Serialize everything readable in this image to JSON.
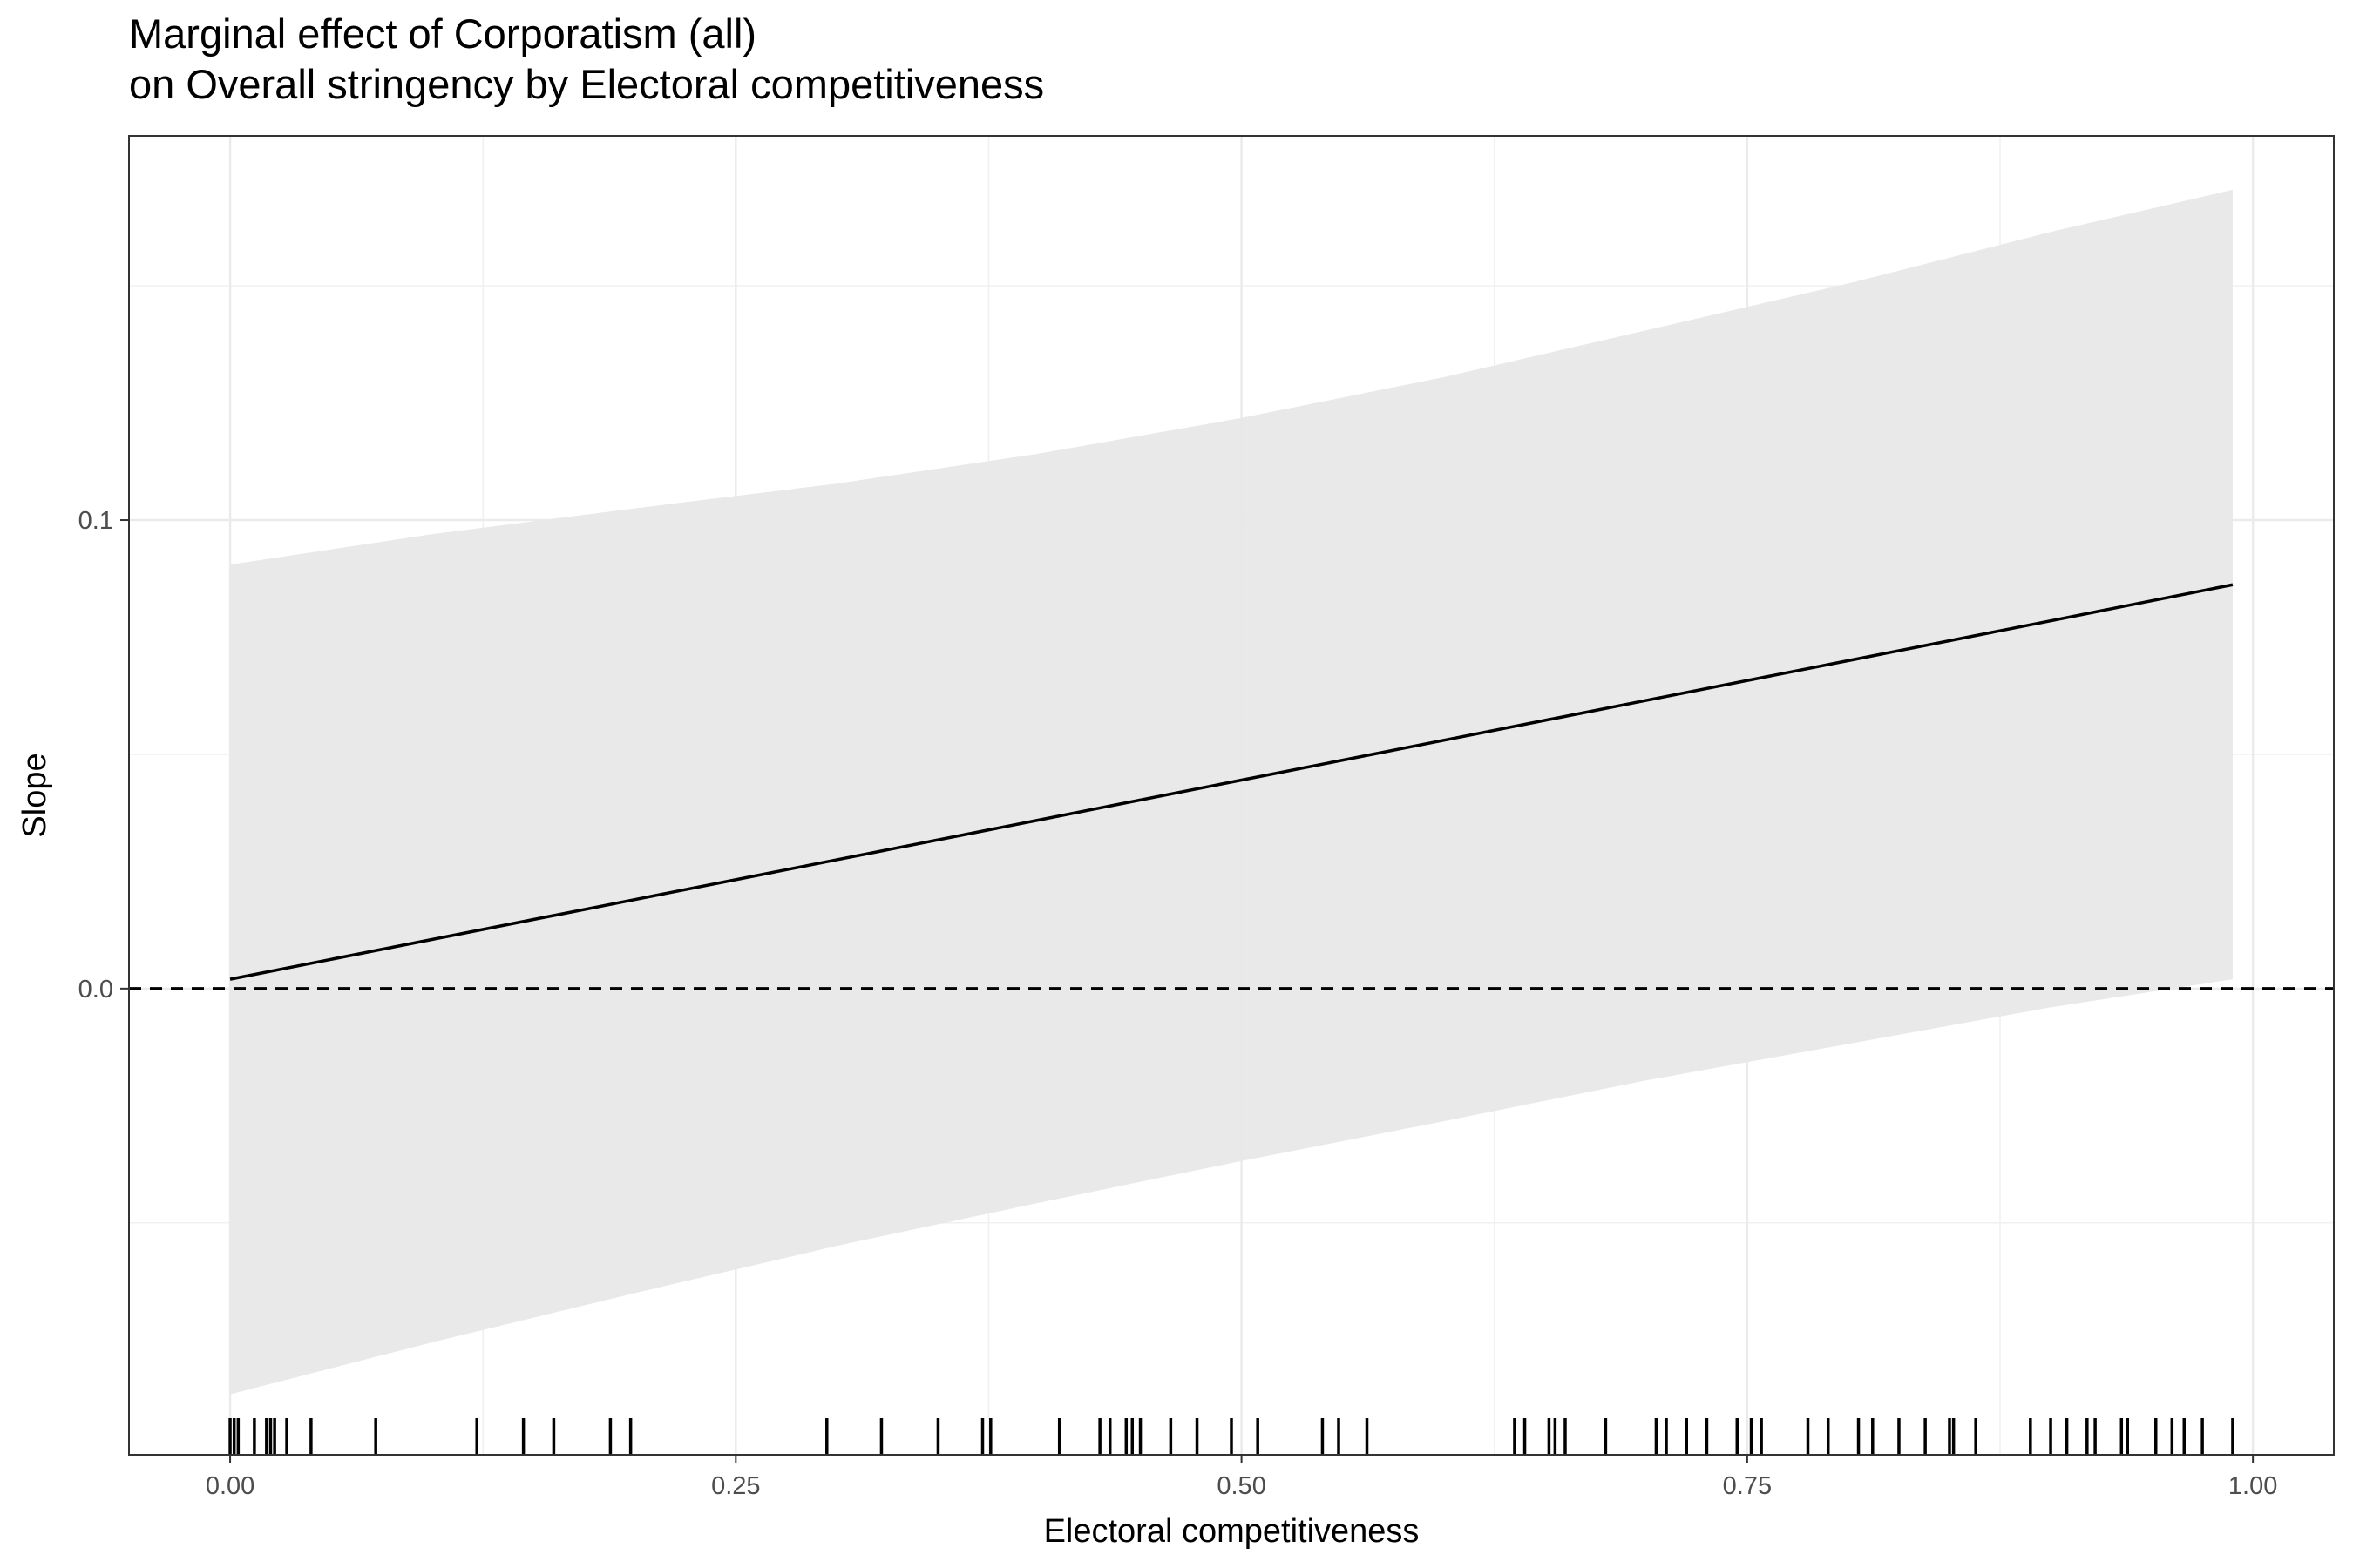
{
  "chart_data": {
    "type": "line",
    "title": "Marginal effect of Corporatism (all)",
    "subtitle": "on Overall stringency by Electoral competitiveness",
    "xlabel": "Electoral competitiveness",
    "ylabel": "Slope",
    "xlim": [
      -0.05,
      1.04
    ],
    "ylim": [
      -0.0995,
      0.182
    ],
    "x_ticks": [
      0,
      0.25,
      0.5,
      0.75,
      1
    ],
    "x_tick_labels": [
      "0.00",
      "0.25",
      "0.50",
      "0.75",
      "1.00"
    ],
    "y_ticks": [
      0,
      0.1
    ],
    "y_tick_labels": [
      "0.0",
      "0.1"
    ],
    "grid": true,
    "reference_line": {
      "y": 0,
      "style": "dashed"
    },
    "series": [
      {
        "x": [
          0.0,
          0.1,
          0.2,
          0.3,
          0.4,
          0.5,
          0.6,
          0.7,
          0.8,
          0.9,
          0.99
        ],
        "y": [
          0.002,
          0.0105,
          0.019,
          0.0275,
          0.036,
          0.0445,
          0.053,
          0.0615,
          0.07,
          0.0785,
          0.0862
        ],
        "lower": [
          -0.0866,
          -0.0755,
          -0.065,
          -0.0549,
          -0.0457,
          -0.0368,
          -0.0283,
          -0.0196,
          -0.0118,
          -0.004,
          0.002
        ],
        "upper": [
          0.0905,
          0.097,
          0.1025,
          0.1078,
          0.1142,
          0.1218,
          0.1305,
          0.1405,
          0.1505,
          0.1615,
          0.1705
        ]
      }
    ],
    "rug_x": [
      0.0,
      0.002,
      0.004,
      0.012,
      0.018,
      0.02,
      0.022,
      0.028,
      0.04,
      0.072,
      0.122,
      0.145,
      0.16,
      0.188,
      0.198,
      0.295,
      0.322,
      0.35,
      0.372,
      0.376,
      0.41,
      0.43,
      0.435,
      0.443,
      0.446,
      0.45,
      0.465,
      0.478,
      0.495,
      0.508,
      0.54,
      0.548,
      0.562,
      0.635,
      0.64,
      0.652,
      0.655,
      0.66,
      0.68,
      0.705,
      0.71,
      0.72,
      0.73,
      0.745,
      0.752,
      0.757,
      0.78,
      0.79,
      0.805,
      0.812,
      0.825,
      0.838,
      0.85,
      0.852,
      0.863,
      0.89,
      0.9,
      0.908,
      0.918,
      0.922,
      0.935,
      0.938,
      0.952,
      0.96,
      0.966,
      0.975,
      0.99
    ]
  }
}
